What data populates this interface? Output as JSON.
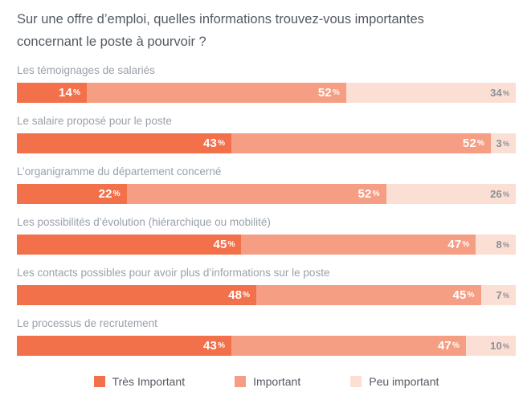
{
  "chart_data": {
    "type": "bar",
    "stacked": true,
    "orientation": "horizontal",
    "title": "Sur une offre d’emploi, quelles informations trouvez-vous importantes concernant le poste à pourvoir ?",
    "value_format": "percent",
    "legend_position": "bottom",
    "grid": false,
    "categories": [
      "Les témoignages de salariés",
      "Le salaire proposé pour le poste",
      "L’organigramme du département concerné",
      "Les possibilités d’évolution (hiérarchique ou mobilité)",
      "Les contacts possibles pour avoir plus d’informations sur le poste",
      "Le processus de recrutement"
    ],
    "series": [
      {
        "name": "Très Important",
        "key": "tres-important",
        "color": "#F2714B",
        "label_color": "#FFFFFF",
        "values": [
          14,
          43,
          22,
          45,
          48,
          43
        ]
      },
      {
        "name": "Important",
        "key": "important",
        "color": "#F59E83",
        "label_color": "#FFFFFF",
        "values": [
          52,
          52,
          52,
          47,
          45,
          47
        ]
      },
      {
        "name": "Peu important",
        "key": "peu-important",
        "color": "#FBDFD5",
        "label_color": "#8B9096",
        "values": [
          34,
          3,
          26,
          8,
          7,
          10
        ]
      }
    ],
    "text_colors": {
      "title": "#545A62",
      "category_label": "#9AA1A9",
      "legend_label": "#545A62"
    }
  }
}
